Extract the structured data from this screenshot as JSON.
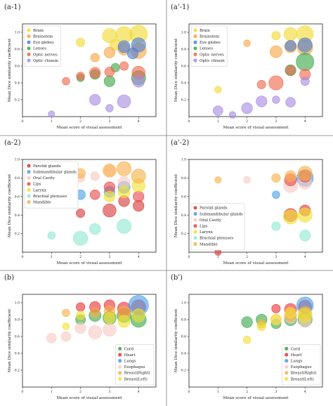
{
  "panel_labels": [
    "(a-1)",
    "(a'-1)",
    "(a-2)",
    "(a'-2)",
    "(b)",
    "(b')"
  ],
  "chart_data": [
    {
      "type": "scatter",
      "label": "(a-1)",
      "xlabel": "Mean score of visual assessment",
      "ylabel": "Mean Dice similarity coefficient",
      "xlim": [
        0,
        4.6
      ],
      "ylim": [
        0,
        1.1
      ],
      "xticks": [
        "0",
        "1",
        "2",
        "3",
        "4"
      ],
      "yticks": [
        "0.2",
        "0.4",
        "0.6",
        "0.8",
        "1.0"
      ],
      "legend_position": "top-left",
      "series": [
        {
          "name": "Brain",
          "color": "#f2d930",
          "points": [
            [
              3.0,
              0.96,
              0.45
            ],
            [
              3.5,
              0.97,
              0.55
            ],
            [
              4.0,
              0.98,
              0.6
            ],
            [
              2.0,
              0.88,
              0.2
            ],
            [
              3.2,
              0.85,
              0.3
            ]
          ]
        },
        {
          "name": "Brainstem",
          "color": "#f5a742",
          "points": [
            [
              3.0,
              0.76,
              0.3
            ],
            [
              3.5,
              0.8,
              0.35
            ],
            [
              4.0,
              0.78,
              0.5
            ],
            [
              2.5,
              0.7,
              0.2
            ]
          ]
        },
        {
          "name": "Eye globes",
          "color": "#4c7fd4",
          "points": [
            [
              3.5,
              0.83,
              0.35
            ],
            [
              4.0,
              0.85,
              0.45
            ],
            [
              3.8,
              0.75,
              0.3
            ]
          ]
        },
        {
          "name": "Lenses",
          "color": "#3aa84a",
          "points": [
            [
              2.0,
              0.46,
              0.15
            ],
            [
              2.5,
              0.5,
              0.25
            ],
            [
              3.0,
              0.42,
              0.3
            ],
            [
              4.0,
              0.46,
              0.45
            ],
            [
              3.2,
              0.58,
              0.2
            ]
          ]
        },
        {
          "name": "Optic nerves",
          "color": "#f0664b",
          "points": [
            [
              1.5,
              0.42,
              0.15
            ],
            [
              2.0,
              0.48,
              0.18
            ],
            [
              2.5,
              0.52,
              0.3
            ],
            [
              3.0,
              0.53,
              0.25
            ],
            [
              4.0,
              0.52,
              0.4
            ],
            [
              3.5,
              0.6,
              0.2
            ]
          ]
        },
        {
          "name": "Optic chiasm",
          "color": "#a78be0",
          "points": [
            [
              1.0,
              0.03,
              0.1
            ],
            [
              2.5,
              0.2,
              0.3
            ],
            [
              3.5,
              0.18,
              0.4
            ],
            [
              4.0,
              0.42,
              0.35
            ],
            [
              3.0,
              0.1,
              0.15
            ]
          ]
        }
      ]
    },
    {
      "type": "scatter",
      "label": "(a'-1)",
      "xlabel": "Mean score of visual assessment",
      "ylabel": "Mean Dice similarity coefficient",
      "xlim": [
        0,
        4.6
      ],
      "ylim": [
        0,
        1.1
      ],
      "xticks": [
        "0",
        "1",
        "2",
        "3",
        "4"
      ],
      "yticks": [
        "0.2",
        "0.4",
        "0.6",
        "0.8",
        "1.0"
      ],
      "legend_position": "top-left",
      "series": [
        {
          "name": "Brain",
          "color": "#f2d930",
          "points": [
            [
              1.0,
              0.32,
              0.12
            ],
            [
              3.0,
              0.96,
              0.2
            ],
            [
              3.5,
              0.98,
              0.4
            ],
            [
              4.0,
              0.98,
              0.55
            ]
          ]
        },
        {
          "name": "Brainstem",
          "color": "#f5a742",
          "points": [
            [
              2.0,
              0.87,
              0.12
            ],
            [
              3.0,
              0.77,
              0.35
            ],
            [
              3.5,
              0.83,
              0.35
            ],
            [
              4.0,
              0.82,
              0.5
            ]
          ]
        },
        {
          "name": "Eye globes",
          "color": "#4c7fd4",
          "points": [
            [
              3.5,
              0.84,
              0.3
            ],
            [
              4.0,
              0.85,
              0.45
            ]
          ]
        },
        {
          "name": "Lenses",
          "color": "#3aa84a",
          "points": [
            [
              4.0,
              0.65,
              0.6
            ],
            [
              3.5,
              0.55,
              0.3
            ]
          ]
        },
        {
          "name": "Optic nerves",
          "color": "#f0664b",
          "points": [
            [
              2.5,
              0.38,
              0.2
            ],
            [
              3.0,
              0.4,
              0.45
            ],
            [
              3.5,
              0.55,
              0.25
            ],
            [
              4.0,
              0.5,
              0.3
            ]
          ]
        },
        {
          "name": "Optic chiasm",
          "color": "#a78be0",
          "points": [
            [
              1.0,
              0.07,
              0.25
            ],
            [
              1.5,
              0.02,
              0.12
            ],
            [
              2.0,
              0.1,
              0.3
            ],
            [
              2.5,
              0.18,
              0.3
            ],
            [
              3.0,
              0.2,
              0.15
            ],
            [
              3.5,
              0.17,
              0.25
            ],
            [
              4.0,
              0.42,
              0.2
            ]
          ]
        }
      ]
    },
    {
      "type": "scatter",
      "label": "(a-2)",
      "xlabel": "Mean score of visual assessment",
      "ylabel": "Mean Dice similarity coefficient",
      "xlim": [
        0,
        4.6
      ],
      "ylim": [
        0,
        1.0
      ],
      "xticks": [
        "0",
        "1",
        "2",
        "3",
        "4"
      ],
      "yticks": [
        "0.2",
        "0.4",
        "0.6",
        "0.8",
        "1.0"
      ],
      "legend_position": "top-left",
      "series": [
        {
          "name": "Parotid glands",
          "color": "#d9383a",
          "points": [
            [
              2.0,
              0.42,
              0.2
            ],
            [
              3.0,
              0.45,
              0.4
            ],
            [
              3.5,
              0.55,
              0.3
            ],
            [
              4.0,
              0.5,
              0.3
            ]
          ]
        },
        {
          "name": "Submandibular glands",
          "color": "#4c9ee6",
          "points": [
            [
              1.0,
              0.58,
              0.2
            ],
            [
              2.0,
              0.62,
              0.25
            ],
            [
              3.0,
              0.65,
              0.3
            ],
            [
              3.5,
              0.7,
              0.35
            ]
          ]
        },
        {
          "name": "Oral Cavity",
          "color": "#f8c9c4",
          "points": [
            [
              2.0,
              0.8,
              0.2
            ],
            [
              2.5,
              0.82,
              0.2
            ],
            [
              3.0,
              0.88,
              0.3
            ],
            [
              3.5,
              0.75,
              0.35
            ]
          ]
        },
        {
          "name": "Lips",
          "color": "#e8484a",
          "points": [
            [
              2.5,
              0.62,
              0.25
            ],
            [
              3.0,
              0.7,
              0.3
            ],
            [
              4.0,
              0.6,
              0.3
            ]
          ]
        },
        {
          "name": "Larynx",
          "color": "#f2e030",
          "points": [
            [
              3.0,
              0.6,
              0.3
            ],
            [
              3.5,
              0.65,
              0.35
            ],
            [
              4.0,
              0.72,
              0.4
            ]
          ]
        },
        {
          "name": "Brachial plexuses",
          "color": "#8fe8d0",
          "points": [
            [
              1.0,
              0.18,
              0.15
            ],
            [
              2.0,
              0.15,
              0.45
            ],
            [
              2.5,
              0.25,
              0.3
            ],
            [
              3.5,
              0.28,
              0.45
            ]
          ]
        },
        {
          "name": "Mandible",
          "color": "#f7b04a",
          "points": [
            [
              2.0,
              0.85,
              0.25
            ],
            [
              3.0,
              0.88,
              0.4
            ],
            [
              3.5,
              0.9,
              0.45
            ],
            [
              4.0,
              0.82,
              0.45
            ]
          ]
        }
      ]
    },
    {
      "type": "scatter",
      "label": "(a'-2)",
      "xlabel": "Mean score of visual assessment",
      "ylabel": "Mean Dice similarity coefficient",
      "xlim": [
        0,
        4.6
      ],
      "ylim": [
        0,
        1.0
      ],
      "xticks": [
        "0",
        "1",
        "2",
        "3",
        "4"
      ],
      "yticks": [
        "0.2",
        "0.4",
        "0.6",
        "0.8",
        "1.0"
      ],
      "legend_position": "bottom-left",
      "series": [
        {
          "name": "Parotid glands",
          "color": "#d9383a",
          "points": [
            [
              1.0,
              0.0,
              0.1
            ],
            [
              3.5,
              0.4,
              0.4
            ],
            [
              4.0,
              0.45,
              0.3
            ]
          ]
        },
        {
          "name": "Submandibular glands",
          "color": "#4c9ee6",
          "points": [
            [
              3.0,
              0.62,
              0.15
            ],
            [
              4.0,
              0.8,
              0.55
            ]
          ]
        },
        {
          "name": "Oral Cavity",
          "color": "#f8c9c4",
          "points": [
            [
              2.0,
              0.78,
              0.12
            ],
            [
              3.5,
              0.72,
              0.45
            ],
            [
              4.0,
              0.75,
              0.4
            ]
          ]
        },
        {
          "name": "Lips",
          "color": "#e8484a",
          "points": [
            [
              3.5,
              0.78,
              0.35
            ],
            [
              4.0,
              0.82,
              0.35
            ]
          ]
        },
        {
          "name": "Larynx",
          "color": "#f2e030",
          "points": [
            [
              3.5,
              0.38,
              0.45
            ],
            [
              4.0,
              0.4,
              0.45
            ]
          ]
        },
        {
          "name": "Brachial plexuses",
          "color": "#8fe8d0",
          "points": [
            [
              3.0,
              0.28,
              0.2
            ],
            [
              4.0,
              0.18,
              0.3
            ]
          ]
        },
        {
          "name": "Mandible",
          "color": "#f7b04a",
          "points": [
            [
              1.0,
              0.78,
              0.1
            ],
            [
              3.0,
              0.8,
              0.2
            ],
            [
              3.5,
              0.82,
              0.3
            ],
            [
              4.0,
              0.85,
              0.45
            ]
          ]
        }
      ]
    },
    {
      "type": "scatter",
      "label": "(b)",
      "xlabel": "Mean score of visual assessment",
      "ylabel": "Mean Dice similarity coefficient",
      "xlim": [
        0,
        4.6
      ],
      "ylim": [
        0,
        1.1
      ],
      "xticks": [
        "0",
        "1",
        "2",
        "3",
        "4"
      ],
      "yticks": [
        "0.2",
        "0.4",
        "0.6",
        "0.8",
        "1.0"
      ],
      "legend_position": "bottom-right",
      "series": [
        {
          "name": "Cord",
          "color": "#3aa84a",
          "points": [
            [
              2.0,
              0.8,
              0.25
            ],
            [
              2.5,
              0.85,
              0.35
            ],
            [
              3.0,
              0.82,
              0.4
            ],
            [
              3.5,
              0.85,
              0.45
            ],
            [
              4.0,
              0.8,
              0.5
            ]
          ]
        },
        {
          "name": "Heart",
          "color": "#e8343a",
          "points": [
            [
              2.0,
              0.95,
              0.2
            ],
            [
              2.5,
              0.95,
              0.3
            ],
            [
              3.0,
              0.97,
              0.3
            ],
            [
              3.5,
              0.93,
              0.4
            ],
            [
              4.0,
              0.95,
              0.45
            ]
          ]
        },
        {
          "name": "Lungs",
          "color": "#4c9ee6",
          "points": [
            [
              4.0,
              0.97,
              0.7
            ]
          ]
        },
        {
          "name": "Esophagus",
          "color": "#f8c9c4",
          "points": [
            [
              1.0,
              0.58,
              0.25
            ],
            [
              1.5,
              0.6,
              0.25
            ],
            [
              2.0,
              0.7,
              0.3
            ],
            [
              2.5,
              0.65,
              0.4
            ],
            [
              3.0,
              0.68,
              0.4
            ]
          ]
        },
        {
          "name": "Breast(Right)",
          "color": "#f7b04a",
          "points": [
            [
              1.5,
              0.88,
              0.15
            ],
            [
              2.5,
              0.88,
              0.25
            ],
            [
              3.0,
              0.9,
              0.3
            ],
            [
              3.5,
              0.88,
              0.4
            ]
          ]
        },
        {
          "name": "Breast(Left)",
          "color": "#f2e030",
          "points": [
            [
              1.5,
              0.72,
              0.12
            ],
            [
              2.0,
              0.85,
              0.2
            ],
            [
              3.0,
              0.82,
              0.3
            ],
            [
              3.5,
              0.78,
              0.35
            ],
            [
              4.0,
              0.85,
              0.4
            ]
          ]
        }
      ]
    },
    {
      "type": "scatter",
      "label": "(b')",
      "xlabel": "Mean score of visual assessment",
      "ylabel": "Mean Dice similarity coefficient",
      "xlim": [
        0,
        4.6
      ],
      "ylim": [
        0,
        1.1
      ],
      "xticks": [
        "0",
        "1",
        "2",
        "3",
        "4"
      ],
      "yticks": [
        "0.2",
        "0.4",
        "0.6",
        "0.8",
        "1.0"
      ],
      "legend_position": "bottom-right",
      "series": [
        {
          "name": "Cord",
          "color": "#3aa84a",
          "points": [
            [
              2.0,
              0.77,
              0.3
            ],
            [
              2.5,
              0.8,
              0.3
            ],
            [
              3.0,
              0.75,
              0.25
            ],
            [
              3.5,
              0.8,
              0.35
            ],
            [
              4.0,
              0.8,
              0.45
            ]
          ]
        },
        {
          "name": "Heart",
          "color": "#e8343a",
          "points": [
            [
              3.0,
              0.93,
              0.2
            ],
            [
              3.5,
              0.92,
              0.35
            ],
            [
              4.0,
              0.95,
              0.4
            ]
          ]
        },
        {
          "name": "Lungs",
          "color": "#4c9ee6",
          "points": [
            [
              4.0,
              0.97,
              0.55
            ]
          ]
        },
        {
          "name": "Esophagus",
          "color": "#f8c9c4",
          "points": [
            [
              3.0,
              0.8,
              0.25
            ],
            [
              3.5,
              0.82,
              0.3
            ],
            [
              4.0,
              0.78,
              0.35
            ]
          ]
        },
        {
          "name": "Breast(Right)",
          "color": "#f7b04a",
          "points": [
            [
              2.5,
              0.75,
              0.2
            ],
            [
              3.5,
              0.85,
              0.35
            ],
            [
              4.0,
              0.88,
              0.4
            ]
          ]
        },
        {
          "name": "Breast(Left)",
          "color": "#f2e030",
          "points": [
            [
              2.0,
              0.56,
              0.15
            ],
            [
              2.5,
              0.72,
              0.2
            ],
            [
              3.0,
              0.8,
              0.3
            ],
            [
              3.5,
              0.88,
              0.3
            ],
            [
              4.0,
              0.85,
              0.45
            ]
          ]
        }
      ]
    }
  ]
}
